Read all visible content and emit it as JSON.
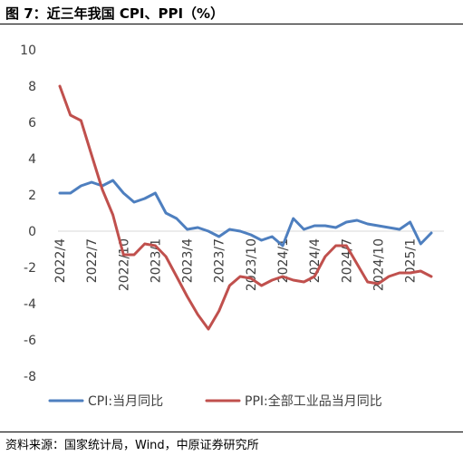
{
  "title": "图 7：近三年我国 CPI、PPI（%）",
  "source": "资料来源：国家统计局，Wind，中原证券研究所",
  "colors": {
    "cpi": "#4e7fbf",
    "ppi": "#c0504d",
    "axis": "#404040"
  },
  "chart_data": {
    "type": "line",
    "ylim": [
      -8,
      10
    ],
    "yticks": [
      10,
      8,
      6,
      4,
      2,
      0,
      -2,
      -4,
      -6,
      -8
    ],
    "xticklabels": [
      "2022/4",
      "2022/7",
      "2022/10",
      "2023/1",
      "2023/4",
      "2023/7",
      "2023/10",
      "2024/1",
      "2024/4",
      "2024/7",
      "2024/10",
      "2025/1"
    ],
    "x": [
      "2022/4",
      "2022/5",
      "2022/6",
      "2022/7",
      "2022/8",
      "2022/9",
      "2022/10",
      "2022/11",
      "2022/12",
      "2023/1",
      "2023/2",
      "2023/3",
      "2023/4",
      "2023/5",
      "2023/6",
      "2023/7",
      "2023/8",
      "2023/9",
      "2023/10",
      "2023/11",
      "2023/12",
      "2024/1",
      "2024/2",
      "2024/3",
      "2024/4",
      "2024/5",
      "2024/6",
      "2024/7",
      "2024/8",
      "2024/9",
      "2024/10",
      "2024/11",
      "2024/12",
      "2025/1",
      "2025/2",
      "2025/3"
    ],
    "series": [
      {
        "name": "CPI:当月同比",
        "color_key": "cpi",
        "values": [
          2.1,
          2.1,
          2.5,
          2.7,
          2.5,
          2.8,
          2.1,
          1.6,
          1.8,
          2.1,
          1.0,
          0.7,
          0.1,
          0.2,
          0.0,
          -0.3,
          0.1,
          0.0,
          -0.2,
          -0.5,
          -0.3,
          -0.8,
          0.7,
          0.1,
          0.3,
          0.3,
          0.2,
          0.5,
          0.6,
          0.4,
          0.3,
          0.2,
          0.1,
          0.5,
          -0.7,
          -0.1
        ]
      },
      {
        "name": "PPI:全部工业品当月同比",
        "color_key": "ppi",
        "values": [
          8.0,
          6.4,
          6.1,
          4.2,
          2.3,
          0.9,
          -1.3,
          -1.3,
          -0.7,
          -0.8,
          -1.4,
          -2.5,
          -3.6,
          -4.6,
          -5.4,
          -4.4,
          -3.0,
          -2.5,
          -2.6,
          -3.0,
          -2.7,
          -2.5,
          -2.7,
          -2.8,
          -2.5,
          -1.4,
          -0.8,
          -0.8,
          -1.8,
          -2.8,
          -2.9,
          -2.5,
          -2.3,
          -2.3,
          -2.2,
          -2.5
        ]
      }
    ],
    "legend_position": "bottom",
    "grid": false
  }
}
